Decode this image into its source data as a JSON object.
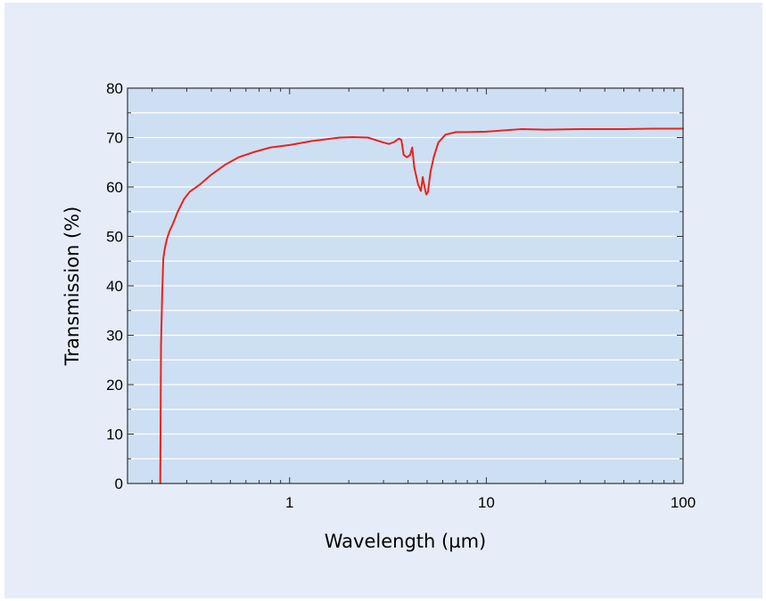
{
  "chart_data": {
    "type": "line",
    "title": "",
    "xlabel": "Wavelength (µm)",
    "ylabel": "Transmission (%)",
    "x_scale": "log",
    "xlim": [
      0.15,
      100
    ],
    "ylim": [
      0,
      80
    ],
    "x_ticks": [
      1,
      10,
      100
    ],
    "x_tick_labels": [
      "1",
      "10",
      "100"
    ],
    "y_ticks": [
      0,
      10,
      20,
      30,
      40,
      50,
      60,
      70,
      80
    ],
    "y_tick_labels": [
      "0",
      "10",
      "20",
      "30",
      "40",
      "50",
      "60",
      "70",
      "80"
    ],
    "grid": true,
    "colors": {
      "figure_background": "#e6edf8",
      "plot_background": "#cddff2",
      "grid": "#ffffff",
      "line": "#e8231f",
      "axis": "#333333"
    },
    "series": [
      {
        "x": [
          0.22,
          0.222,
          0.225,
          0.228,
          0.232,
          0.238,
          0.245,
          0.255,
          0.27,
          0.29,
          0.31,
          0.35,
          0.4,
          0.47,
          0.55,
          0.65,
          0.8,
          1.0,
          1.3,
          1.8,
          2.1,
          2.5,
          3.0,
          3.2,
          3.4,
          3.6,
          3.7,
          3.8,
          3.95,
          4.1,
          4.2,
          4.3,
          4.5,
          4.65,
          4.75,
          4.85,
          4.95,
          5.05,
          5.2,
          5.4,
          5.7,
          6.2,
          7.0,
          8.0,
          10.0,
          15.0,
          20.0,
          30.0,
          50.0,
          70.0,
          100.0
        ],
        "y": [
          0.0,
          28.0,
          38.0,
          45.5,
          47.5,
          49.5,
          51.0,
          52.5,
          55.0,
          57.5,
          59.0,
          60.5,
          62.5,
          64.5,
          66.0,
          67.0,
          68.0,
          68.5,
          69.3,
          70.0,
          70.1,
          70.0,
          69.0,
          68.7,
          69.1,
          69.8,
          69.5,
          66.5,
          66.0,
          66.5,
          68.0,
          64.0,
          60.5,
          59.2,
          62.0,
          60.0,
          58.5,
          59.0,
          63.0,
          66.0,
          69.0,
          70.6,
          71.1,
          71.1,
          71.2,
          71.7,
          71.6,
          71.7,
          71.7,
          71.8,
          71.8
        ]
      }
    ]
  }
}
